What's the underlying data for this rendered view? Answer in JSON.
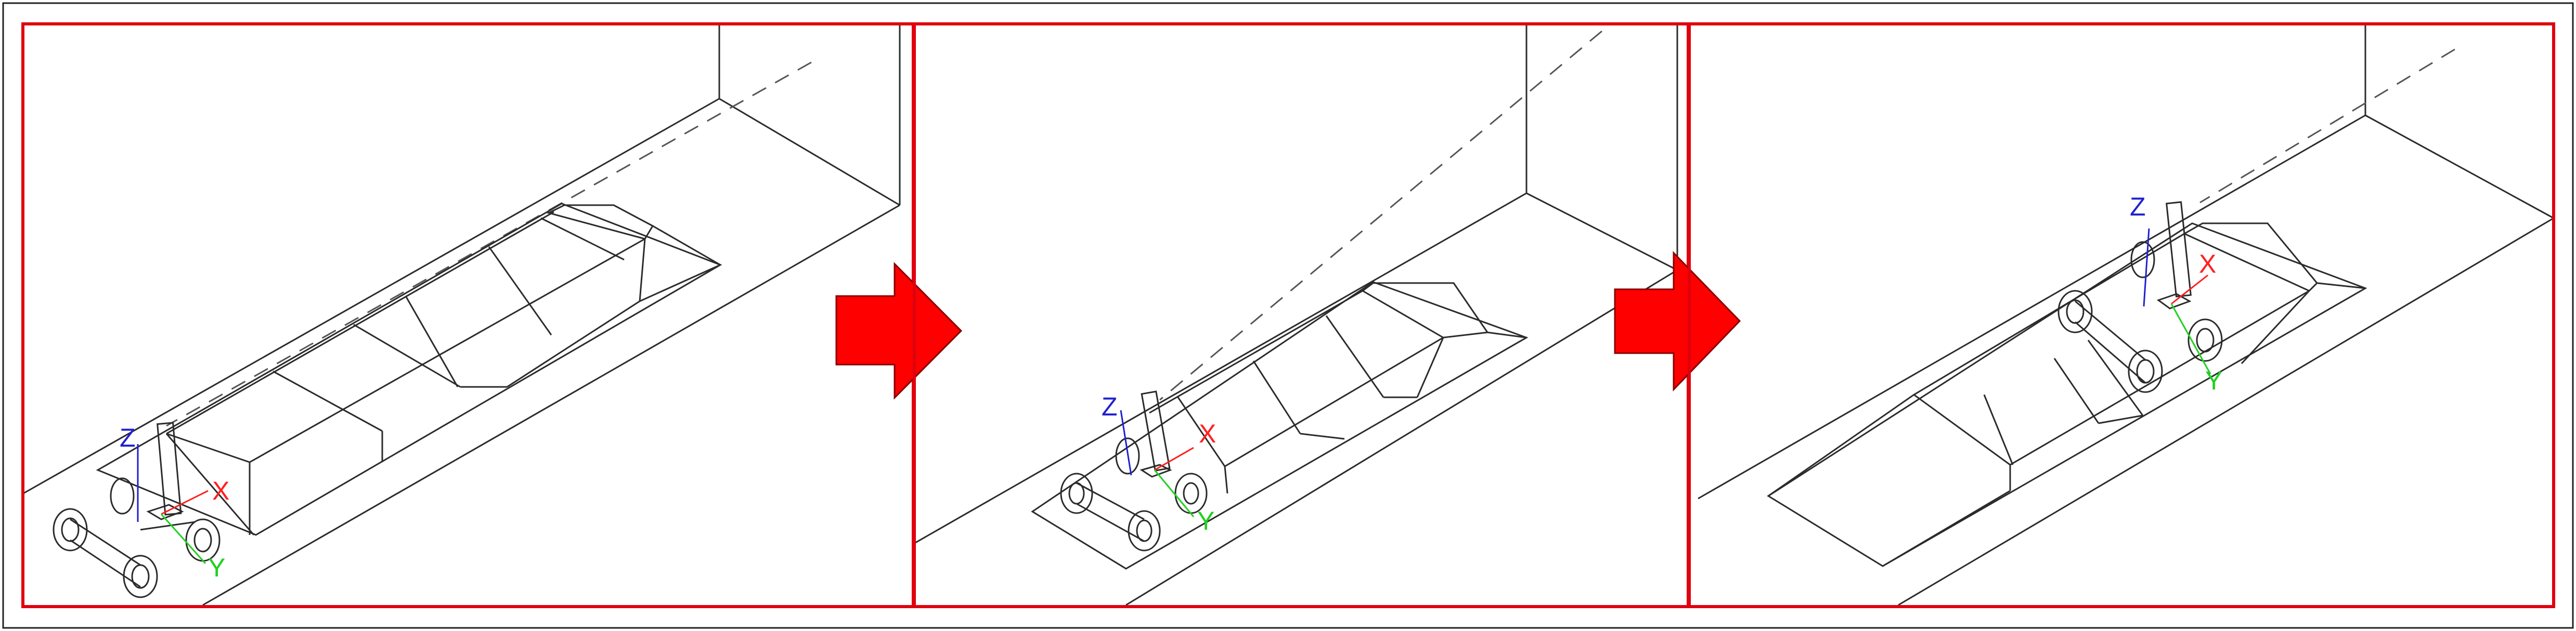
{
  "colors": {
    "frame": "#e0000e",
    "outer_border": "#222222",
    "line": "#2b2b2b",
    "dashed": "#555555",
    "arrow": "#ff0000",
    "axis_x": "#ff2020",
    "axis_y": "#20d020",
    "axis_z": "#2020d0"
  },
  "panels": [
    {
      "axis_labels": {
        "x": "X",
        "y": "Y",
        "z": "Z"
      }
    },
    {
      "axis_labels": {
        "x": "X",
        "y": "Y",
        "z": "Z"
      }
    },
    {
      "axis_labels": {
        "x": "X",
        "y": "Y",
        "z": "Z"
      }
    }
  ],
  "arrows": [
    {
      "icon": "right-arrow-icon"
    },
    {
      "icon": "right-arrow-icon"
    }
  ]
}
